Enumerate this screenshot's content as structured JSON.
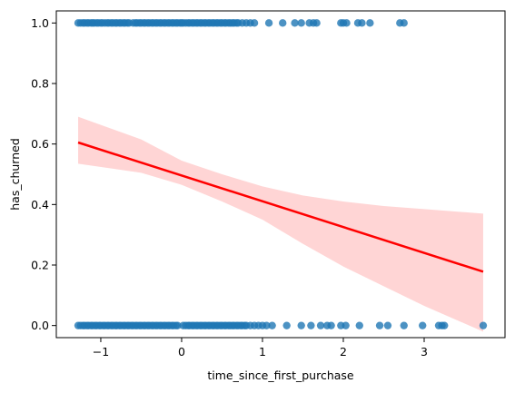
{
  "chart_data": {
    "type": "scatter",
    "title": "",
    "xlabel": "time_since_first_purchase",
    "ylabel": "has_churned",
    "xlim": [
      -1.55,
      4.0
    ],
    "ylim": [
      -0.04,
      1.04
    ],
    "xticks": [
      -1,
      0,
      1,
      2,
      3
    ],
    "xtick_labels": [
      "−1",
      "0",
      "1",
      "2",
      "3"
    ],
    "yticks": [
      0.0,
      0.2,
      0.4,
      0.6,
      0.8,
      1.0
    ],
    "ytick_labels": [
      "0.0",
      "0.2",
      "0.4",
      "0.6",
      "0.8",
      "1.0"
    ],
    "grid": false,
    "legend": "none",
    "colors": {
      "points": "#1f77b4",
      "regression_line": "#ff0000",
      "confidence_band": "#ffb3b3"
    },
    "series": [
      {
        "kind": "points",
        "y": 1,
        "x": [
          -1.28,
          -1.25,
          -1.22,
          -1.2,
          -1.17,
          -1.15,
          -1.12,
          -1.1,
          -1.08,
          -1.05,
          -1.03,
          -1.0,
          -0.98,
          -0.95,
          -0.92,
          -0.9,
          -0.87,
          -0.85,
          -0.82,
          -0.8,
          -0.77,
          -0.75,
          -0.72,
          -0.7,
          -0.67,
          -0.65,
          -0.6,
          -0.57,
          -0.55,
          -0.52,
          -0.5,
          -0.47,
          -0.45,
          -0.42,
          -0.4,
          -0.37,
          -0.35,
          -0.32,
          -0.3,
          -0.27,
          -0.25,
          -0.22,
          -0.2,
          -0.17,
          -0.15,
          -0.12,
          -0.1,
          -0.07,
          -0.05,
          -0.02,
          0.0,
          0.02,
          0.05,
          0.08,
          0.1,
          0.13,
          0.15,
          0.18,
          0.2,
          0.23,
          0.25,
          0.28,
          0.3,
          0.33,
          0.35,
          0.38,
          0.4,
          0.43,
          0.45,
          0.48,
          0.5,
          0.53,
          0.55,
          0.58,
          0.6,
          0.63,
          0.65,
          0.68,
          0.7,
          0.75,
          0.8,
          0.85,
          0.9,
          1.08,
          1.25,
          1.4,
          1.48,
          1.58,
          1.63,
          1.67,
          1.97,
          2.0,
          2.04,
          2.18,
          2.23,
          2.33,
          2.7,
          2.75
        ]
      },
      {
        "kind": "points",
        "y": 0,
        "x": [
          -1.28,
          -1.25,
          -1.22,
          -1.2,
          -1.17,
          -1.15,
          -1.12,
          -1.1,
          -1.07,
          -1.05,
          -1.02,
          -1.0,
          -0.97,
          -0.95,
          -0.92,
          -0.9,
          -0.87,
          -0.85,
          -0.82,
          -0.8,
          -0.77,
          -0.75,
          -0.72,
          -0.7,
          -0.67,
          -0.65,
          -0.62,
          -0.6,
          -0.57,
          -0.55,
          -0.52,
          -0.5,
          -0.47,
          -0.45,
          -0.42,
          -0.4,
          -0.37,
          -0.35,
          -0.32,
          -0.3,
          -0.27,
          -0.25,
          -0.22,
          -0.2,
          -0.17,
          -0.15,
          -0.12,
          -0.1,
          -0.07,
          -0.05,
          0.02,
          0.05,
          0.08,
          0.1,
          0.13,
          0.15,
          0.18,
          0.2,
          0.23,
          0.25,
          0.28,
          0.3,
          0.33,
          0.35,
          0.38,
          0.4,
          0.43,
          0.45,
          0.48,
          0.5,
          0.53,
          0.55,
          0.58,
          0.6,
          0.63,
          0.65,
          0.68,
          0.7,
          0.73,
          0.75,
          0.78,
          0.8,
          0.85,
          0.9,
          0.95,
          1.0,
          1.05,
          1.12,
          1.3,
          1.48,
          1.6,
          1.72,
          1.8,
          1.85,
          1.97,
          2.03,
          2.2,
          2.45,
          2.55,
          2.75,
          2.98,
          3.18,
          3.22,
          3.25,
          3.73
        ]
      },
      {
        "kind": "regression",
        "x": [
          -1.28,
          3.73
        ],
        "y": [
          0.605,
          0.178
        ]
      },
      {
        "kind": "confidence_band",
        "x": [
          -1.28,
          -0.5,
          0.0,
          0.5,
          1.0,
          1.5,
          2.0,
          2.5,
          3.0,
          3.73
        ],
        "lower": [
          0.535,
          0.505,
          0.465,
          0.41,
          0.35,
          0.27,
          0.195,
          0.13,
          0.065,
          -0.02
        ],
        "upper": [
          0.69,
          0.615,
          0.545,
          0.5,
          0.46,
          0.43,
          0.41,
          0.395,
          0.385,
          0.37
        ]
      }
    ]
  }
}
